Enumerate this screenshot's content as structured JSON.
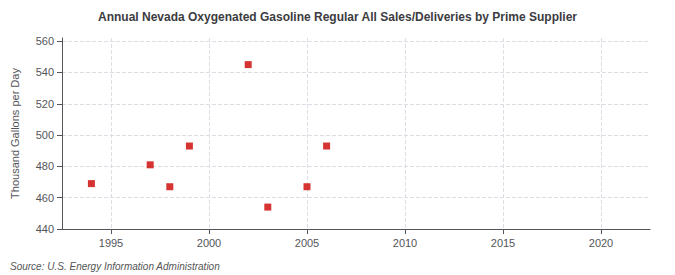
{
  "chart_data": {
    "type": "scatter",
    "title": "Annual Nevada Oxygenated Gasoline Regular All Sales/Deliveries by Prime Supplier",
    "ylabel": "Thousand Gallons per Day",
    "annotation": "Source: U.S. Energy Information Administration",
    "x": [
      1994,
      1997,
      1998,
      1999,
      2002,
      2003,
      2005,
      2006
    ],
    "values": [
      469,
      481,
      467,
      493,
      545,
      454,
      467,
      493
    ],
    "color": "#cc0000",
    "marker": "square",
    "xlim": [
      1992.5,
      2022.5
    ],
    "ylim": [
      440,
      562
    ],
    "xticks": [
      1995,
      2000,
      2005,
      2010,
      2015,
      2020
    ],
    "yticks": [
      440,
      460,
      480,
      500,
      520,
      540,
      560
    ],
    "grid": true
  }
}
